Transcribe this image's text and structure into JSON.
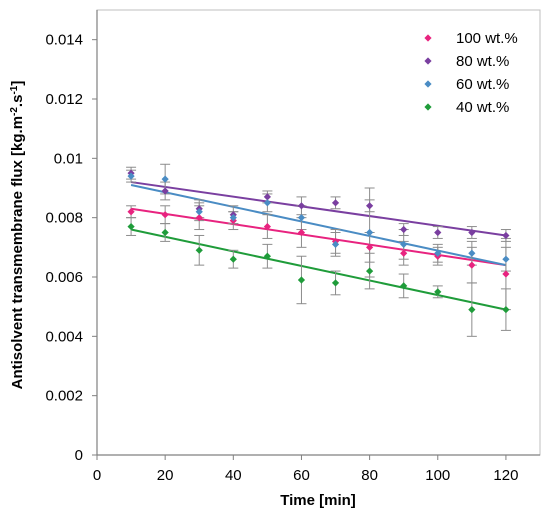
{
  "chart_data": {
    "type": "scatter",
    "title": "",
    "xlabel": "Time [min]",
    "ylabel_main": "Antisolvent transmembrane flux [kg.m",
    "ylabel_sup1": "-2",
    "ylabel_mid": ".s",
    "ylabel_sup2": "-1",
    "ylabel_end": "]",
    "xlim": [
      0,
      130
    ],
    "ylim": [
      0,
      0.015
    ],
    "x_ticks": [
      0,
      20,
      40,
      60,
      80,
      100,
      120
    ],
    "x_tick_labels": [
      "0",
      "20",
      "40",
      "60",
      "80",
      "100",
      "120"
    ],
    "y_ticks": [
      0,
      0.002,
      0.004,
      0.006,
      0.008,
      0.01,
      0.012,
      0.014
    ],
    "y_tick_labels": [
      "0",
      "0.002",
      "0.004",
      "0.006",
      "0.008",
      "0.01",
      "0.012",
      "0.014"
    ],
    "grid": false,
    "legend_position": "top-right",
    "x": [
      10,
      20,
      30,
      40,
      50,
      60,
      70,
      80,
      90,
      100,
      110,
      120
    ],
    "series": [
      {
        "name": "100 wt.%",
        "color": "#e8237f",
        "values": [
          0.0082,
          0.0081,
          0.008,
          0.0079,
          0.0077,
          0.0075,
          0.0072,
          0.007,
          0.0068,
          0.0067,
          0.0064,
          0.0061
        ],
        "errors": [
          0.0002,
          0.0003,
          0.0004,
          0.0003,
          0.0004,
          0.0005,
          0.0004,
          0.0005,
          0.0004,
          0.0003,
          0.0006,
          0.0012
        ],
        "trend": [
          0.0083,
          0.0064
        ]
      },
      {
        "name": "80 wt.%",
        "color": "#7a3fa0",
        "values": [
          0.0095,
          0.0089,
          0.0083,
          0.0081,
          0.0087,
          0.0084,
          0.0085,
          0.0084,
          0.0076,
          0.0075,
          0.0075,
          0.0074
        ],
        "errors": [
          0.0002,
          0.0003,
          0.0003,
          0.0003,
          0.0002,
          0.0003,
          0.0002,
          0.0002,
          0.0002,
          0.0002,
          0.0002,
          0.0002
        ],
        "trend": [
          0.0092,
          0.0074
        ]
      },
      {
        "name": "60 wt.%",
        "color": "#4a8cc4",
        "values": [
          0.0094,
          0.0093,
          0.0082,
          0.008,
          0.0085,
          0.008,
          0.0071,
          0.0075,
          0.0071,
          0.0068,
          0.0068,
          0.0066
        ],
        "errors": [
          0.0002,
          0.0005,
          0.0003,
          0.0002,
          0.0003,
          0.0004,
          0.0004,
          0.0015,
          0.0005,
          0.0003,
          0.0004,
          0.0004
        ],
        "trend": [
          0.0091,
          0.0064
        ]
      },
      {
        "name": "40 wt.%",
        "color": "#1f9c3a",
        "values": [
          0.0077,
          0.0075,
          0.0069,
          0.0066,
          0.0067,
          0.0059,
          0.0058,
          0.0062,
          0.0057,
          0.0055,
          0.0049,
          0.0049
        ],
        "errors": [
          0.0003,
          0.0003,
          0.0005,
          0.0003,
          0.0004,
          0.0008,
          0.0004,
          0.0006,
          0.0004,
          0.0002,
          0.0009,
          0.0007
        ],
        "trend": [
          0.0076,
          0.0049
        ]
      }
    ]
  }
}
